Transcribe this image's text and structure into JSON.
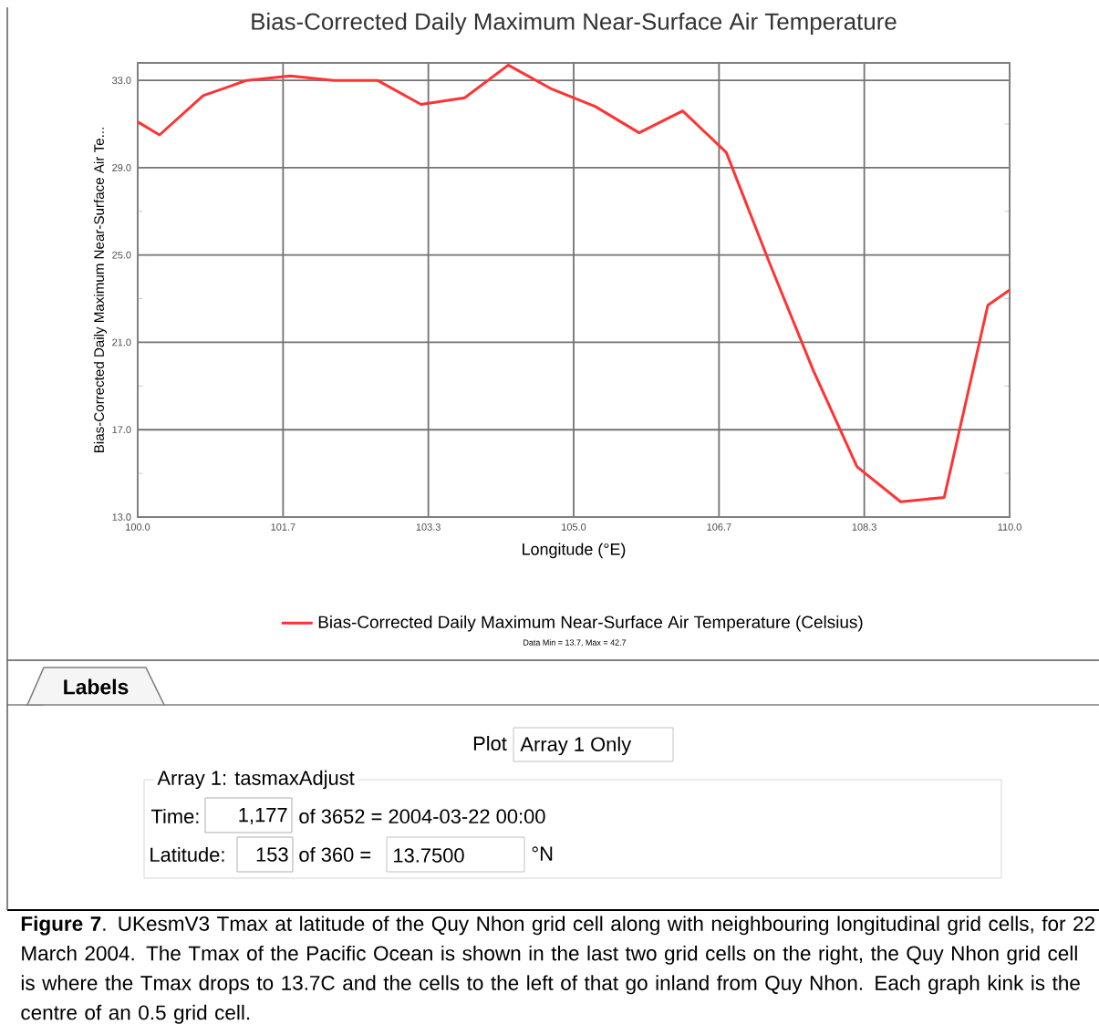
{
  "chart_data": {
    "type": "line",
    "title": "Bias-Corrected Daily Maximum Near-Surface Air Temperature",
    "xlabel": "Longitude (°E)",
    "ylabel": "Bias-Corrected Daily Maximum Near-Surface Air Te...",
    "x": [
      100.0,
      100.25,
      100.75,
      101.25,
      101.75,
      102.25,
      102.75,
      103.25,
      103.75,
      104.25,
      104.75,
      105.25,
      105.75,
      106.25,
      106.75,
      107.25,
      107.75,
      108.25,
      108.75,
      109.25,
      109.75,
      110.0
    ],
    "series": [
      {
        "name": "Bias-Corrected Daily Maximum Near-Surface Air Temperature (Celsius)",
        "color": "#ff3333",
        "line_style": "solid",
        "values": [
          31.1,
          30.5,
          32.3,
          33.0,
          33.2,
          33.0,
          33.0,
          31.9,
          32.2,
          33.7,
          32.6,
          31.8,
          30.6,
          31.6,
          29.7,
          24.6,
          19.7,
          15.3,
          13.7,
          13.9,
          22.7,
          23.4
        ]
      }
    ],
    "xlim": [
      100.0,
      110.0
    ],
    "xticks": [
      {
        "value": 100.0,
        "label": "100.0"
      },
      {
        "value": 101.667,
        "label": "101.7"
      },
      {
        "value": 103.333,
        "label": "103.3"
      },
      {
        "value": 105.0,
        "label": "105.0"
      },
      {
        "value": 106.667,
        "label": "106.7"
      },
      {
        "value": 108.333,
        "label": "108.3"
      },
      {
        "value": 110.0,
        "label": "110.0"
      }
    ],
    "ylim": [
      13,
      33.8
    ],
    "yticks": [
      {
        "value": 13,
        "label": "13.0"
      },
      {
        "value": 17,
        "label": "17.0"
      },
      {
        "value": 21,
        "label": "21.0"
      },
      {
        "value": 25,
        "label": "25.0"
      },
      {
        "value": 29,
        "label": "29.0"
      },
      {
        "value": 33,
        "label": "33.0"
      }
    ],
    "grid": true,
    "legend": "bottom",
    "annotations": [
      "Data Min = 13.7, Max = 42.7",
      "Labels",
      "Plot",
      "Array 1 Only",
      "Array 1: tasmaxAdjust",
      "Time:",
      "1,177",
      "of 3652 = 2004-03-22 00:00",
      "Latitude:",
      "153",
      "of 360 =",
      "13.7500",
      "°N",
      "**Figure 7**. UKesmV3 Tmax at latitude of the Quy Nhon grid cell along with neighbouring longitudinal grid cells, for 22 March 2004.  The Tmax of the Pacific Ocean is shown in the last two grid cells on the right, the Quy Nhon grid cell is where the Tmax drops to 13.7C and the cells to the left of that go inland from Quy Nhon.  Each graph kink is the centre of an 0.5 grid cell."
    ]
  }
}
